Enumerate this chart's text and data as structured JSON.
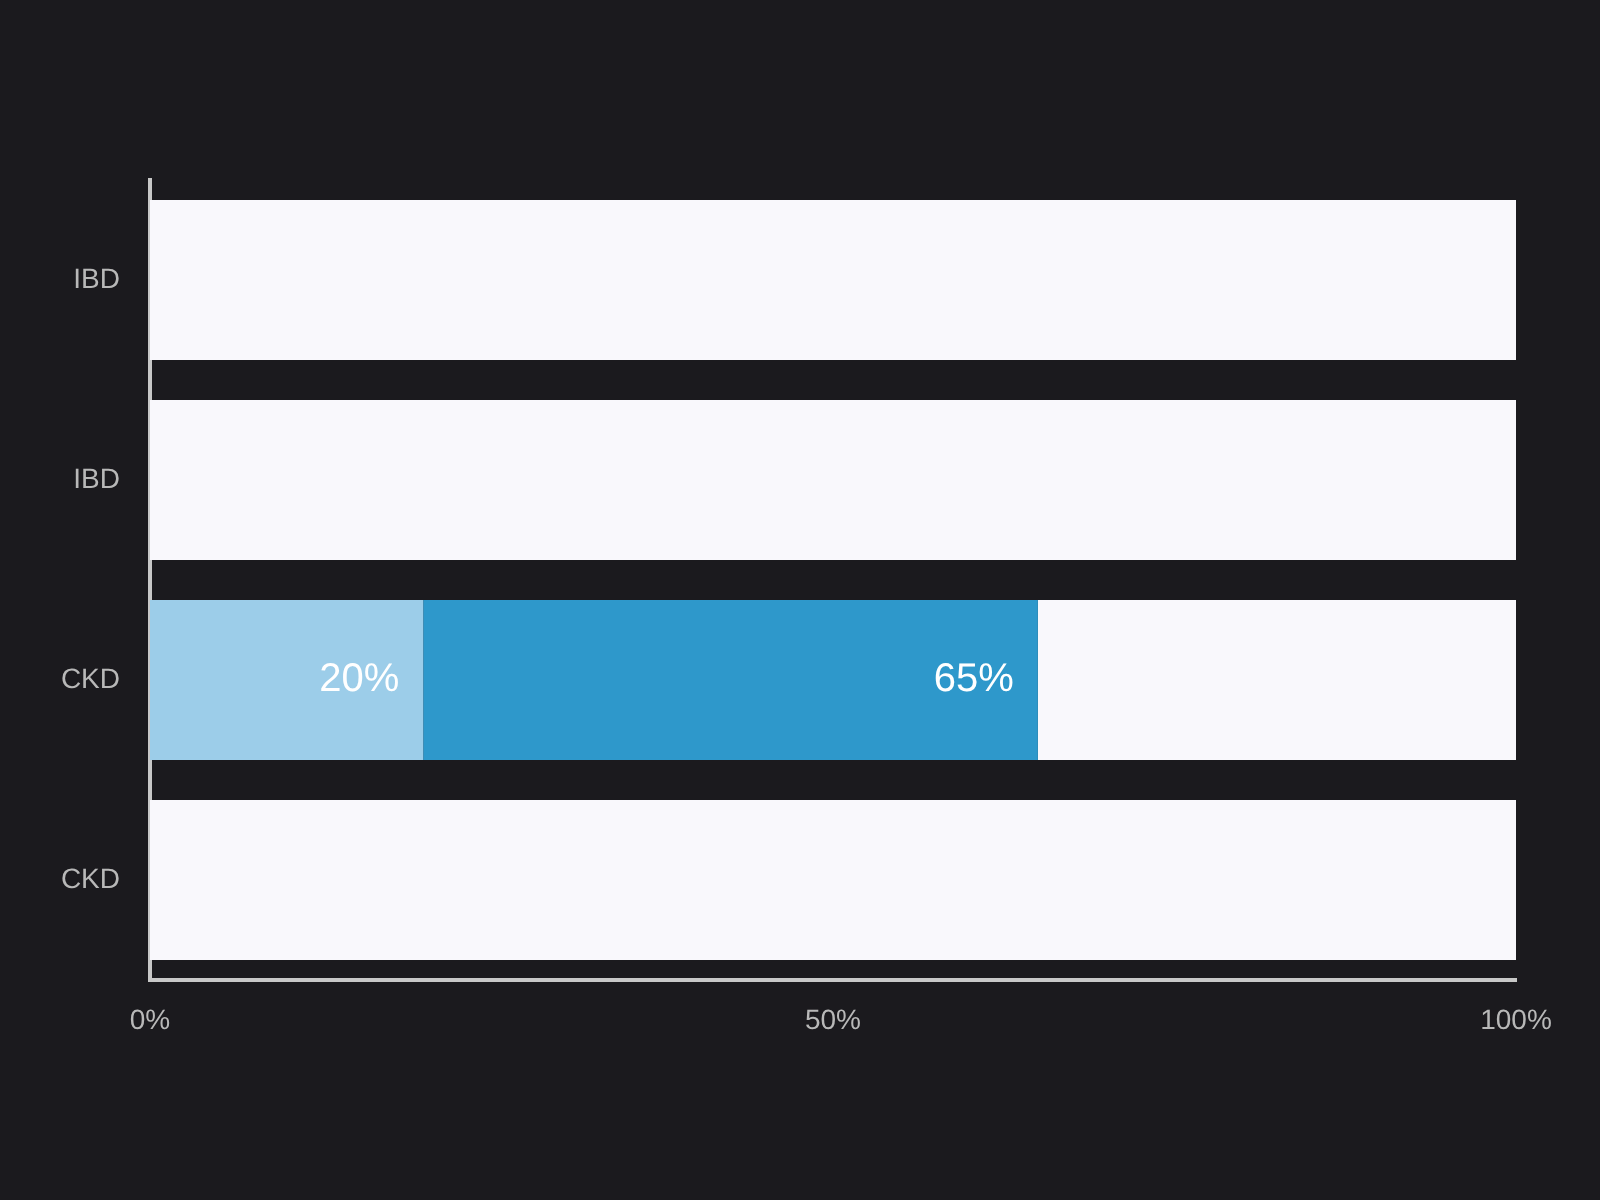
{
  "chart_data": {
    "type": "bar",
    "orientation": "horizontal",
    "stacked": true,
    "categories": [
      "IBD",
      "IBD",
      "CKD",
      "CKD"
    ],
    "series": [
      {
        "color": "#9ccde9",
        "values": [
          null,
          null,
          20,
          null
        ],
        "value_labels": [
          null,
          null,
          "20%",
          null
        ]
      },
      {
        "color": "#2e98cb",
        "values": [
          null,
          null,
          45,
          null
        ]
      },
      {
        "color": "#f9f8fc",
        "values": [
          100,
          100,
          35,
          100
        ]
      }
    ],
    "annotations": [
      {
        "text": "65%",
        "x": 65,
        "y": "CKD"
      }
    ],
    "xlim": [
      0,
      100
    ],
    "xticks": [
      {
        "value": 0,
        "label": "0%"
      },
      {
        "value": 50,
        "label": "50%"
      },
      {
        "value": 100,
        "label": "100%"
      }
    ]
  }
}
